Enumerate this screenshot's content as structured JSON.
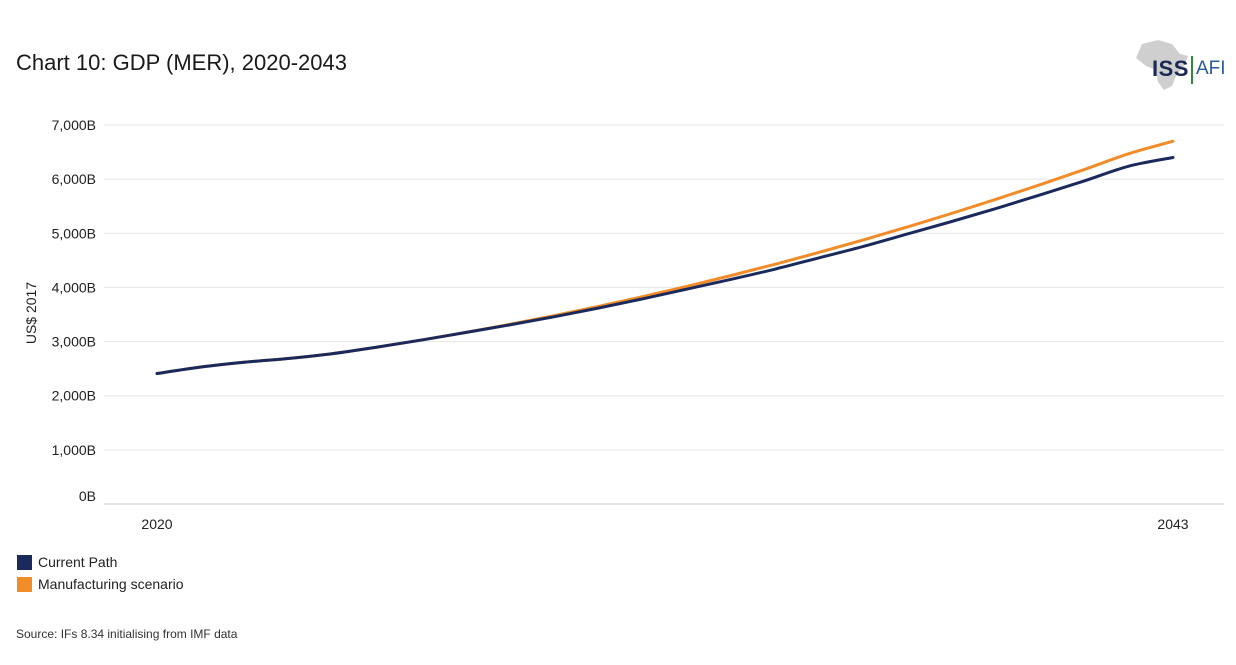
{
  "title": "Chart 10: GDP (MER), 2020-2043",
  "logo": {
    "primary": "ISS",
    "secondary": "AFI"
  },
  "source": "Source: IFs 8.34 initialising from IMF data",
  "colors": {
    "current": "#1b2a5c",
    "manufacturing": "#f28c28",
    "grid": "#e6e6e6"
  },
  "chart_data": {
    "type": "line",
    "title": "Chart 10: GDP (MER), 2020-2043",
    "xlabel": "",
    "ylabel": "US$ 2017",
    "x": [
      2020,
      2021,
      2022,
      2023,
      2024,
      2025,
      2026,
      2027,
      2028,
      2029,
      2030,
      2031,
      2032,
      2033,
      2034,
      2035,
      2036,
      2037,
      2038,
      2039,
      2040,
      2041,
      2042,
      2043
    ],
    "x_tick_labels": [
      "2020",
      "2043"
    ],
    "ylim": [
      0,
      7000
    ],
    "y_ticks": [
      0,
      1000,
      2000,
      3000,
      4000,
      5000,
      6000,
      7000
    ],
    "y_tick_labels": [
      "0B",
      "1,000B",
      "2,000B",
      "3,000B",
      "4,000B",
      "5,000B",
      "6,000B",
      "7,000B"
    ],
    "grid": true,
    "legend_position": "bottom-left",
    "series": [
      {
        "name": "Current Path",
        "values": [
          2410,
          2530,
          2620,
          2690,
          2780,
          2900,
          3030,
          3170,
          3310,
          3460,
          3620,
          3790,
          3970,
          4150,
          4340,
          4550,
          4760,
          4990,
          5220,
          5460,
          5710,
          5970,
          6240,
          6400
        ]
      },
      {
        "name": "Manufacturing scenario",
        "values": [
          2410,
          2530,
          2620,
          2690,
          2780,
          2900,
          3030,
          3170,
          3320,
          3480,
          3650,
          3830,
          4020,
          4220,
          4430,
          4650,
          4880,
          5120,
          5370,
          5630,
          5900,
          6180,
          6470,
          6700
        ]
      }
    ]
  }
}
